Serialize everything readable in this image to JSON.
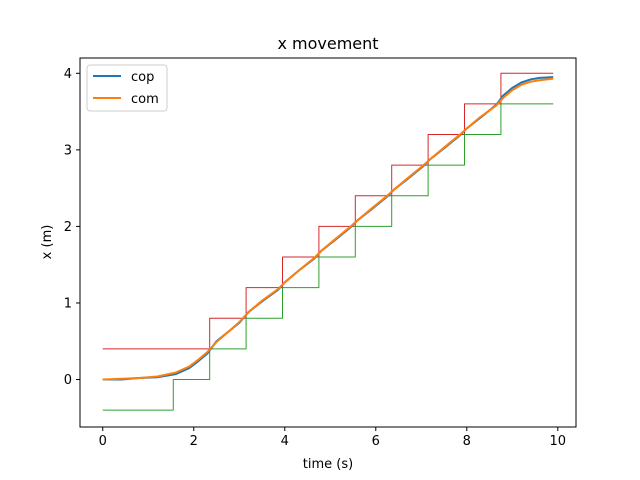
{
  "chart_data": {
    "type": "line",
    "title": "x movement",
    "xlabel": "time (s)",
    "ylabel": "x (m)",
    "xlim": [
      -0.5,
      10.4
    ],
    "ylim": [
      -0.62,
      4.2
    ],
    "xticks": [
      0,
      2,
      4,
      6,
      8,
      10
    ],
    "yticks": [
      0,
      1,
      2,
      3,
      4
    ],
    "grid": false,
    "legend": "top-left",
    "series": [
      {
        "name": "cop",
        "color": "#1f77b4",
        "x": [
          0,
          0.4,
          0.8,
          1.2,
          1.6,
          1.9,
          2.1,
          2.3,
          2.5,
          2.75,
          3.0,
          3.2,
          3.5,
          3.85,
          4.0,
          4.3,
          4.65,
          4.8,
          5.1,
          5.45,
          5.6,
          5.9,
          6.25,
          6.4,
          6.7,
          7.05,
          7.2,
          7.5,
          7.85,
          8.0,
          8.3,
          8.65,
          8.8,
          9.0,
          9.2,
          9.4,
          9.6,
          9.9
        ],
        "y": [
          0.0,
          0.0,
          0.02,
          0.03,
          0.07,
          0.15,
          0.24,
          0.34,
          0.5,
          0.62,
          0.74,
          0.88,
          1.02,
          1.17,
          1.27,
          1.42,
          1.58,
          1.68,
          1.82,
          1.99,
          2.08,
          2.22,
          2.39,
          2.48,
          2.62,
          2.79,
          2.88,
          3.02,
          3.19,
          3.28,
          3.42,
          3.59,
          3.71,
          3.81,
          3.88,
          3.92,
          3.94,
          3.95
        ]
      },
      {
        "name": "com",
        "color": "#ff7f0e",
        "x": [
          0,
          0.4,
          0.8,
          1.2,
          1.6,
          1.9,
          2.1,
          2.3,
          2.5,
          2.75,
          3.0,
          3.2,
          3.5,
          3.85,
          4.0,
          4.3,
          4.65,
          4.8,
          5.1,
          5.45,
          5.6,
          5.9,
          6.25,
          6.4,
          6.7,
          7.05,
          7.2,
          7.5,
          7.85,
          8.0,
          8.3,
          8.65,
          8.8,
          9.0,
          9.2,
          9.4,
          9.6,
          9.9
        ],
        "y": [
          0.0,
          0.01,
          0.02,
          0.04,
          0.09,
          0.17,
          0.26,
          0.36,
          0.49,
          0.62,
          0.75,
          0.88,
          1.03,
          1.18,
          1.27,
          1.42,
          1.59,
          1.68,
          1.83,
          2.0,
          2.08,
          2.23,
          2.4,
          2.48,
          2.63,
          2.8,
          2.88,
          3.03,
          3.2,
          3.28,
          3.43,
          3.58,
          3.68,
          3.78,
          3.85,
          3.89,
          3.91,
          3.93
        ]
      },
      {
        "color": "#d62728",
        "x": [
          0,
          2.35,
          2.35,
          3.15,
          3.15,
          3.95,
          3.95,
          4.75,
          4.75,
          5.55,
          5.55,
          6.35,
          6.35,
          7.15,
          7.15,
          7.95,
          7.95,
          8.75,
          8.75,
          9.9
        ],
        "y": [
          0.4,
          0.4,
          0.8,
          0.8,
          1.2,
          1.2,
          1.6,
          1.6,
          2.0,
          2.0,
          2.4,
          2.4,
          2.8,
          2.8,
          3.2,
          3.2,
          3.6,
          3.6,
          4.0,
          4.0
        ]
      },
      {
        "color": "#2ca02c",
        "x": [
          0,
          1.55,
          1.55,
          2.35,
          2.35,
          3.15,
          3.15,
          3.95,
          3.95,
          4.75,
          4.75,
          5.55,
          5.55,
          6.35,
          6.35,
          7.15,
          7.15,
          7.95,
          7.95,
          8.75,
          8.75,
          9.9
        ],
        "y": [
          -0.4,
          -0.4,
          0.0,
          0.0,
          0.4,
          0.4,
          0.8,
          0.8,
          1.2,
          1.2,
          1.6,
          1.6,
          2.0,
          2.0,
          2.4,
          2.4,
          2.8,
          2.8,
          3.2,
          3.2,
          3.6,
          3.6
        ]
      }
    ]
  }
}
